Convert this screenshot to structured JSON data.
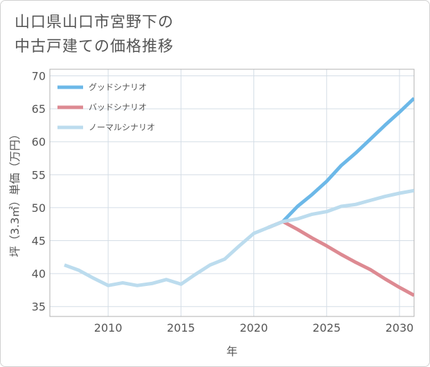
{
  "title": "山口県山口市宮野下の\n中古戸建ての価格推移",
  "chart_data": {
    "type": "line",
    "xlabel": "年",
    "ylabel": "坪（3.3㎡）単価（万円）",
    "xlim": [
      2006,
      2031
    ],
    "ylim": [
      33.5,
      71
    ],
    "xticks": [
      2010,
      2015,
      2020,
      2025,
      2030
    ],
    "yticks": [
      35,
      40,
      45,
      50,
      55,
      60,
      65,
      70
    ],
    "grid": true,
    "legend_position": "top-left",
    "series": [
      {
        "name": "グッドシナリオ",
        "color": "#6cb8e8",
        "x": [
          2022,
          2023,
          2024,
          2025,
          2026,
          2027,
          2028,
          2029,
          2030,
          2031
        ],
        "y": [
          47.9,
          50.2,
          52.0,
          54.0,
          56.4,
          58.3,
          60.4,
          62.5,
          64.5,
          66.6
        ]
      },
      {
        "name": "バッドシナリオ",
        "color": "#dd8a92",
        "x": [
          2021,
          2022,
          2023,
          2024,
          2025,
          2026,
          2027,
          2028,
          2029,
          2030,
          2031
        ],
        "y": [
          47.0,
          47.9,
          46.7,
          45.4,
          44.2,
          42.9,
          41.7,
          40.6,
          39.2,
          37.9,
          36.7
        ]
      },
      {
        "name": "ノーマルシナリオ",
        "color": "#bcdcee",
        "x": [
          2007,
          2008,
          2009,
          2010,
          2011,
          2012,
          2013,
          2014,
          2015,
          2016,
          2017,
          2018,
          2019,
          2020,
          2021,
          2022,
          2023,
          2024,
          2025,
          2026,
          2027,
          2028,
          2029,
          2030,
          2031
        ],
        "y": [
          41.3,
          40.5,
          39.3,
          38.2,
          38.6,
          38.2,
          38.5,
          39.1,
          38.4,
          39.9,
          41.3,
          42.2,
          44.2,
          46.1,
          47.0,
          47.9,
          48.3,
          49.0,
          49.4,
          50.2,
          50.5,
          51.1,
          51.7,
          52.2,
          52.6
        ]
      }
    ]
  }
}
